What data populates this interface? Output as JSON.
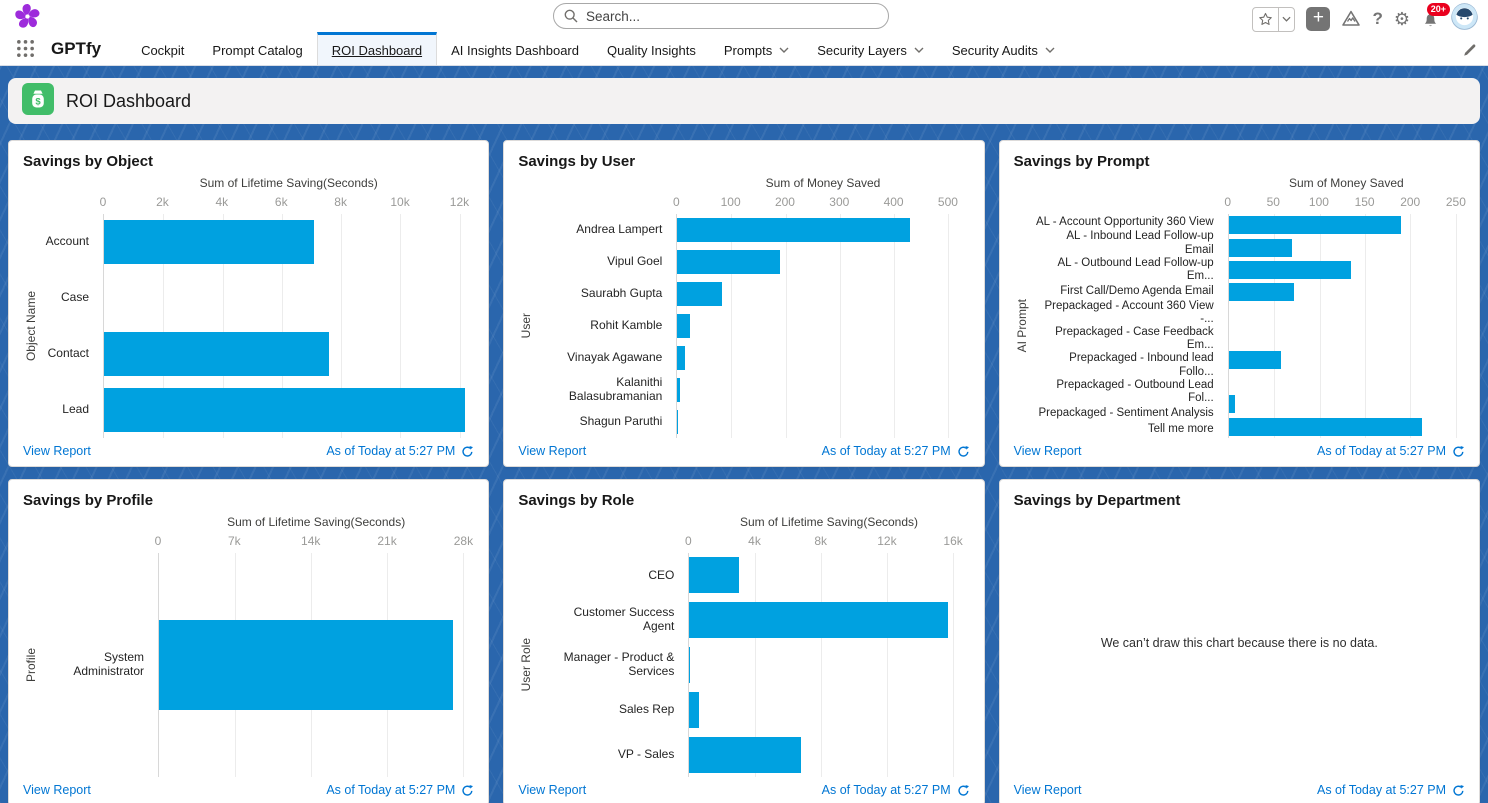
{
  "colors": {
    "accent_blue": "#0176d3",
    "bar_blue": "#00A1E0",
    "page_background": "#2a66ad",
    "badge_red": "#EA001E",
    "roi_icon_green": "#41BD69",
    "logo_purple": "#9D2BDB"
  },
  "header": {
    "search_placeholder": "Search...",
    "notification_badge": "20+"
  },
  "nav": {
    "app_name": "GPTfy",
    "tabs": [
      {
        "label": "Cockpit",
        "active": false,
        "has_dropdown": false
      },
      {
        "label": "Prompt Catalog",
        "active": false,
        "has_dropdown": false
      },
      {
        "label": "ROI Dashboard",
        "active": true,
        "has_dropdown": false
      },
      {
        "label": "AI Insights Dashboard",
        "active": false,
        "has_dropdown": false
      },
      {
        "label": "Quality Insights",
        "active": false,
        "has_dropdown": false
      },
      {
        "label": "Prompts",
        "active": false,
        "has_dropdown": true
      },
      {
        "label": "Security Layers",
        "active": false,
        "has_dropdown": true
      },
      {
        "label": "Security Audits",
        "active": false,
        "has_dropdown": true
      }
    ]
  },
  "page": {
    "title": "ROI Dashboard"
  },
  "cards": [
    {
      "title": "Savings by Object",
      "view_report_label": "View Report",
      "as_of": "As of Today at 5:27 PM",
      "chart_data": {
        "type": "bar",
        "orientation": "horizontal",
        "xlabel": "Sum of Lifetime Saving(Seconds)",
        "ylabel": "Object Name",
        "categories": [
          "Account",
          "Case",
          "Contact",
          "Lead"
        ],
        "values": [
          7100,
          0,
          7600,
          12200
        ],
        "tick_values": [
          0,
          2000,
          4000,
          6000,
          8000,
          10000,
          12000
        ],
        "tick_labels": [
          "0",
          "2k",
          "4k",
          "6k",
          "8k",
          "10k",
          "12k"
        ],
        "xlim": [
          0,
          12500
        ],
        "grid": true
      }
    },
    {
      "title": "Savings by User",
      "view_report_label": "View Report",
      "as_of": "As of Today at 5:27 PM",
      "chart_data": {
        "type": "bar",
        "orientation": "horizontal",
        "xlabel": "Sum of Money Saved",
        "ylabel": "User",
        "categories": [
          "Andrea Lampert",
          "Vipul Goel",
          "Saurabh Gupta",
          "Rohit Kamble",
          "Vinayak Agawane",
          "Kalanithi Balasubramanian",
          "Shagun Paruthi"
        ],
        "values": [
          430,
          190,
          82,
          23,
          14,
          5,
          1
        ],
        "tick_values": [
          0,
          100,
          200,
          300,
          400,
          500
        ],
        "tick_labels": [
          "0",
          "100",
          "200",
          "300",
          "400",
          "500"
        ],
        "xlim": [
          0,
          540
        ],
        "grid": true
      }
    },
    {
      "title": "Savings by Prompt",
      "view_report_label": "View Report",
      "as_of": "As of Today at 5:27 PM",
      "chart_data": {
        "type": "bar",
        "orientation": "horizontal",
        "xlabel": "Sum of Money Saved",
        "ylabel": "AI Prompt",
        "categories": [
          "AL - Account Opportunity 360 View",
          "AL - Inbound Lead Follow-up Email",
          "AL - Outbound Lead Follow-up Em...",
          "First Call/Demo Agenda Email",
          "Prepackaged - Account 360 View -...",
          "Prepackaged - Case Feedback Em...",
          "Prepackaged - Inbound lead Follo...",
          "Prepackaged - Outbound Lead Fol...",
          "Prepackaged - Sentiment Analysis",
          "Tell me more"
        ],
        "values": [
          190,
          70,
          135,
          72,
          0,
          0,
          58,
          0,
          7,
          213
        ],
        "tick_values": [
          0,
          50,
          100,
          150,
          200,
          250
        ],
        "tick_labels": [
          "0",
          "50",
          "100",
          "150",
          "200",
          "250"
        ],
        "xlim": [
          0,
          260
        ],
        "grid": true
      }
    },
    {
      "title": "Savings by Profile",
      "view_report_label": "View Report",
      "as_of": "As of Today at 5:27 PM",
      "chart_data": {
        "type": "bar",
        "orientation": "horizontal",
        "xlabel": "Sum of Lifetime Saving(Seconds)",
        "ylabel": "Profile",
        "categories": [
          "System Administrator"
        ],
        "values": [
          27000
        ],
        "tick_values": [
          0,
          7000,
          14000,
          21000,
          28000
        ],
        "tick_labels": [
          "0",
          "7k",
          "14k",
          "21k",
          "28k"
        ],
        "xlim": [
          0,
          29000
        ],
        "grid": true
      }
    },
    {
      "title": "Savings by Role",
      "view_report_label": "View Report",
      "as_of": "As of Today at 5:27 PM",
      "chart_data": {
        "type": "bar",
        "orientation": "horizontal",
        "xlabel": "Sum of Lifetime Saving(Seconds)",
        "ylabel": "User Role",
        "categories": [
          "CEO",
          "Customer Success Agent",
          "Manager - Product & Services",
          "Sales Rep",
          "VP - Sales"
        ],
        "values": [
          3000,
          15700,
          40,
          600,
          6800
        ],
        "tick_values": [
          0,
          4000,
          8000,
          12000,
          16000
        ],
        "tick_labels": [
          "0",
          "4k",
          "8k",
          "12k",
          "16k"
        ],
        "xlim": [
          0,
          17000
        ],
        "grid": true
      }
    },
    {
      "title": "Savings by Department",
      "view_report_label": "View Report",
      "as_of": "As of Today at 5:27 PM",
      "no_data_message": "We can’t draw this chart because there is no data."
    }
  ]
}
